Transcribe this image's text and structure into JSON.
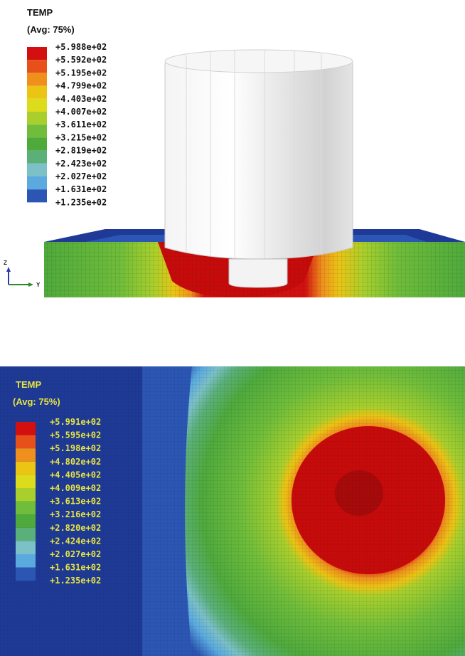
{
  "top_panel": {
    "legend": {
      "title": "TEMP",
      "subtitle": "(Avg: 75%)",
      "labels": [
        "+5.988e+02",
        "+5.592e+02",
        "+5.195e+02",
        "+4.799e+02",
        "+4.403e+02",
        "+4.007e+02",
        "+3.611e+02",
        "+3.215e+02",
        "+2.819e+02",
        "+2.423e+02",
        "+2.027e+02",
        "+1.631e+02",
        "+1.235e+02"
      ]
    },
    "triad": {
      "z": "Z",
      "y": "Y"
    }
  },
  "bottom_panel": {
    "legend": {
      "title": "TEMP",
      "subtitle": "(Avg: 75%)",
      "labels": [
        "+5.991e+02",
        "+5.595e+02",
        "+5.198e+02",
        "+4.802e+02",
        "+4.405e+02",
        "+4.009e+02",
        "+3.613e+02",
        "+3.216e+02",
        "+2.820e+02",
        "+2.424e+02",
        "+2.027e+02",
        "+1.631e+02",
        "+1.235e+02"
      ]
    }
  },
  "colors": {
    "band_colors_hot_to_cold": [
      "#d40f0f",
      "#e8501a",
      "#f0901c",
      "#ecc414",
      "#dcdc1c",
      "#a8cf2c",
      "#6fbd3a",
      "#4faa3c",
      "#5bb07a",
      "#7cc0c8",
      "#5aaae0",
      "#2c56b4",
      "#1e3a96"
    ],
    "tool": "#e6e6e6",
    "bottom_text": "#e8e440",
    "top_text": "#111111"
  }
}
